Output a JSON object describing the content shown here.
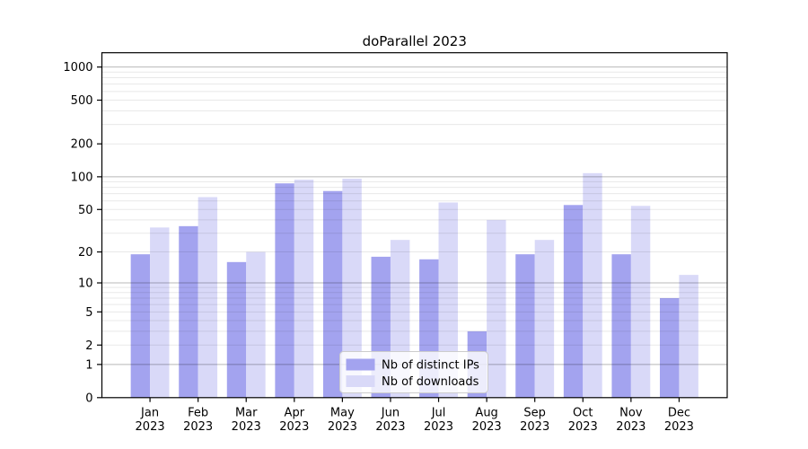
{
  "chart_data": {
    "type": "bar",
    "title": "doParallel 2023",
    "categories": [
      "Jan",
      "Feb",
      "Mar",
      "Apr",
      "May",
      "Jun",
      "Jul",
      "Aug",
      "Sep",
      "Oct",
      "Nov",
      "Dec"
    ],
    "x_year_label": "2023",
    "series": [
      {
        "name": "Nb of distinct IPs",
        "color": "#a3a3ef",
        "values": [
          19,
          35,
          16,
          87,
          74,
          18,
          17,
          3,
          19,
          55,
          19,
          7
        ]
      },
      {
        "name": "Nb of downloads",
        "color": "#d9d9f8",
        "values": [
          34,
          65,
          20,
          94,
          96,
          26,
          58,
          40,
          26,
          108,
          54,
          12
        ]
      }
    ],
    "y_scale": "log1p",
    "y_axis_ticks": [
      0,
      1,
      2,
      5,
      10,
      20,
      50,
      100,
      200,
      500,
      1000
    ],
    "major_gridline_values": [
      1,
      10,
      100,
      1000
    ],
    "minor_gridlines": true,
    "ylim": [
      0,
      1350
    ],
    "legend": {
      "entries": [
        "Nb of distinct IPs",
        "Nb of downloads"
      ],
      "position": "lower-center"
    }
  },
  "colors": {
    "background": "#ffffff",
    "axis": "#000000",
    "grid_major": "rgba(0,0,0,0.28)",
    "grid_minor": "rgba(0,0,0,0.09)",
    "legend_border": "#cccccc",
    "tick_text": "#000000"
  }
}
